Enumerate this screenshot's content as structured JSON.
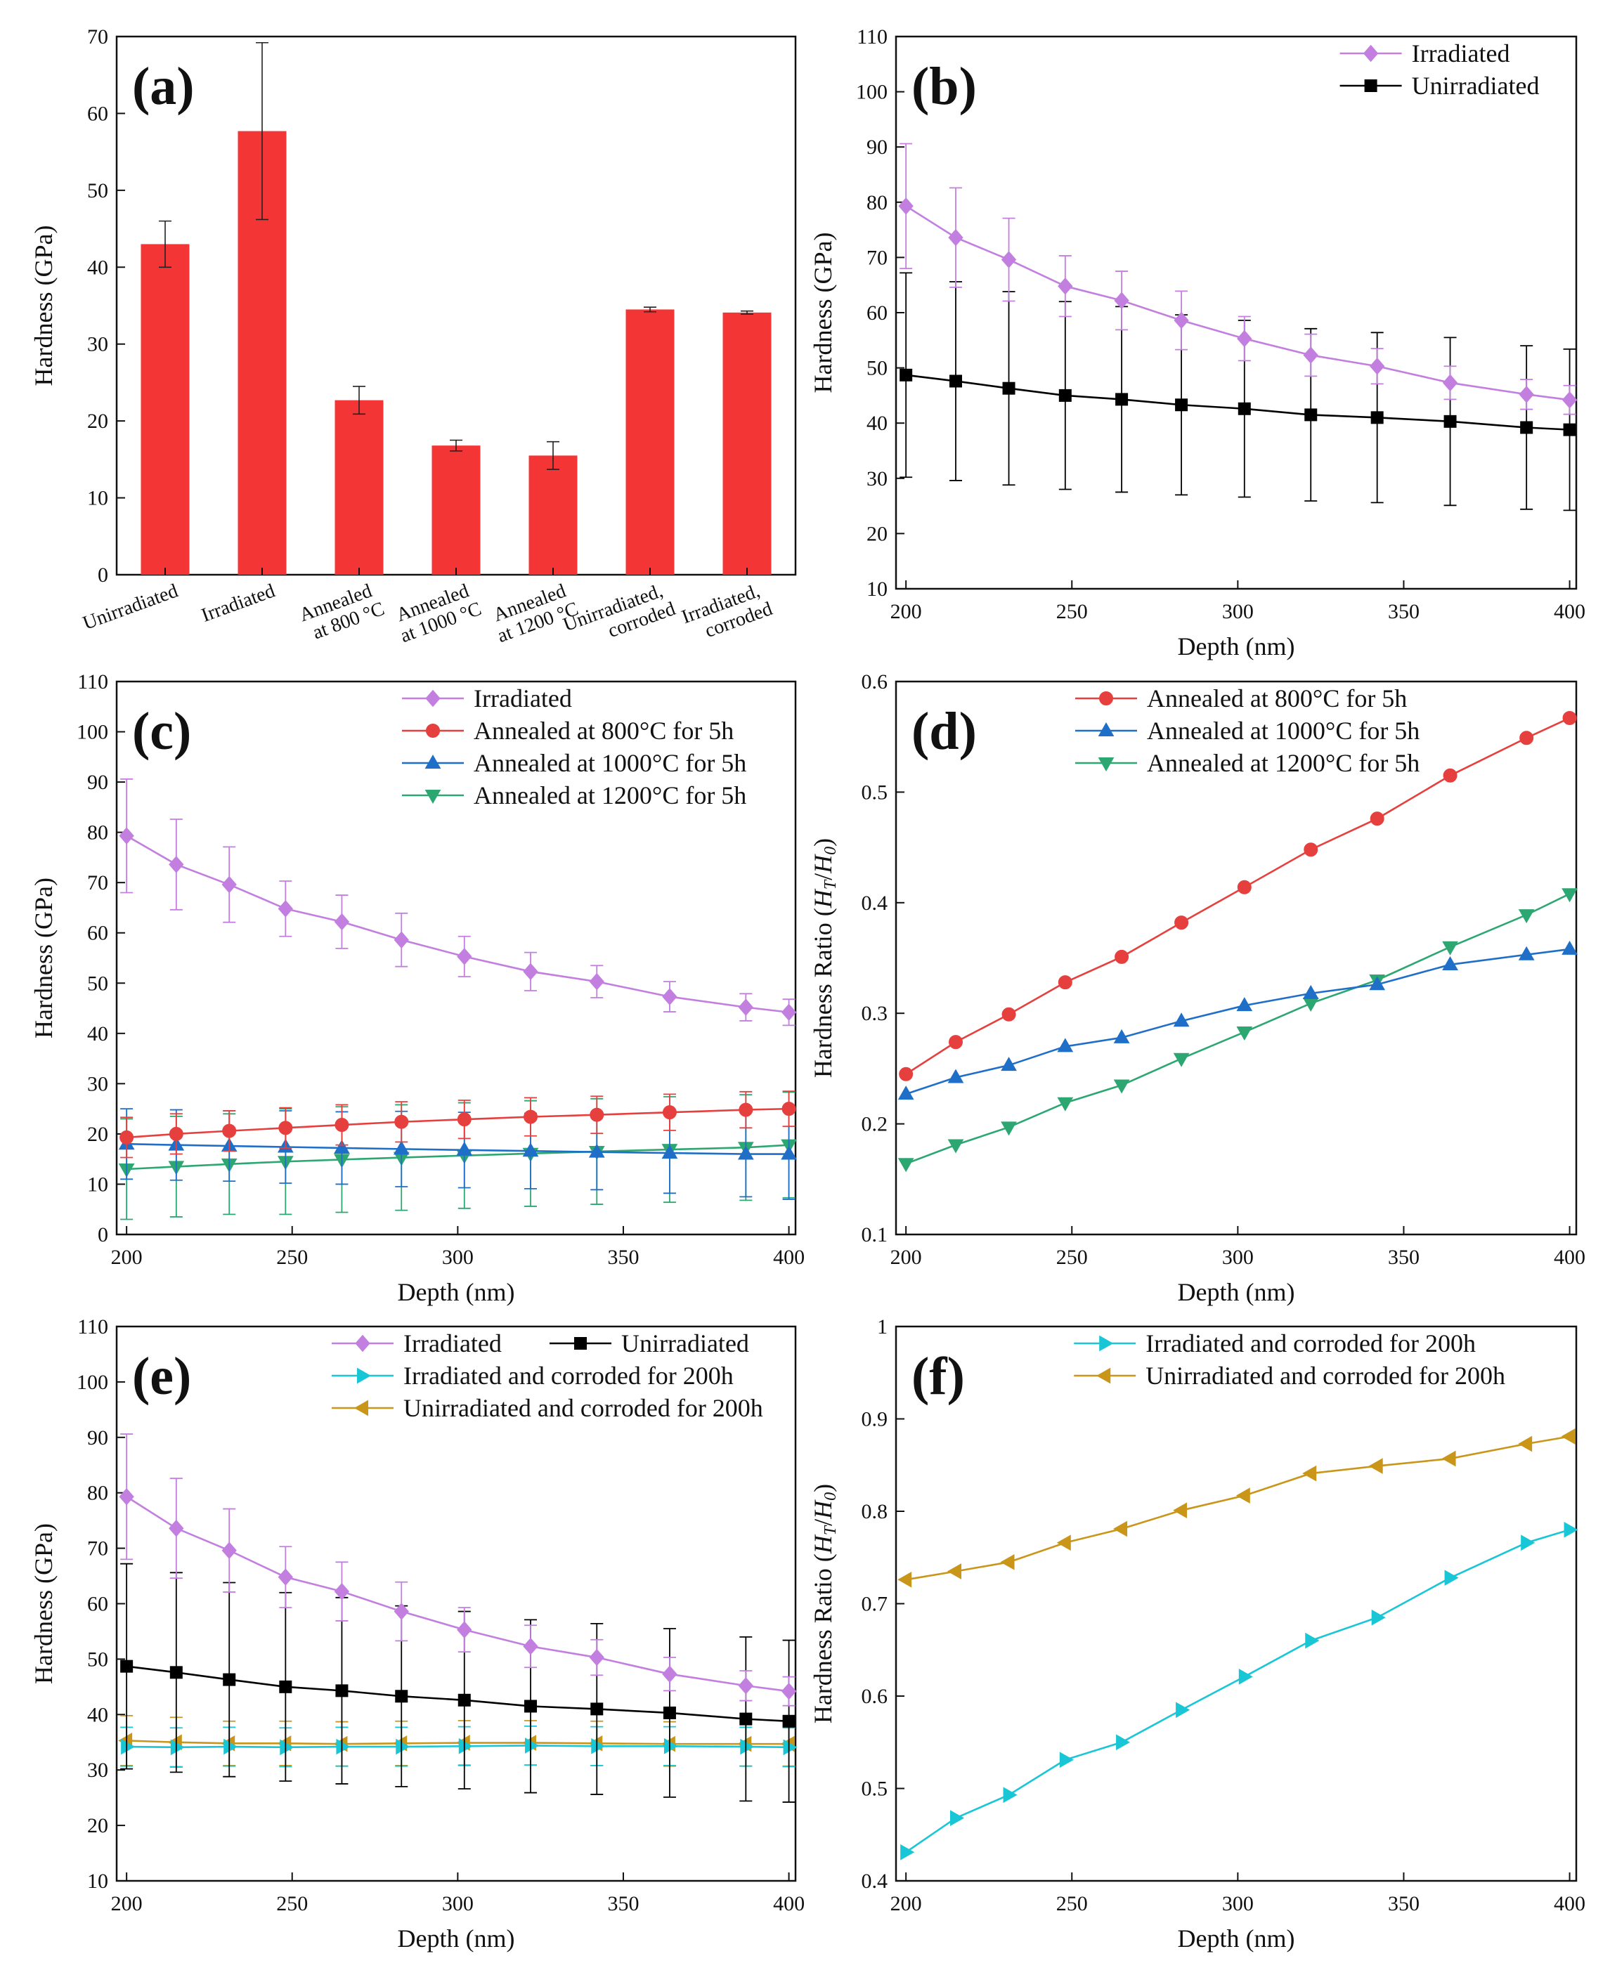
{
  "figure": {
    "panel_count": 6
  },
  "colors": {
    "irradiated": "#C27FE0",
    "unirradiated": "#000000",
    "a800": "#E6403E",
    "a1000": "#1F6FC9",
    "a1200": "#2DA772",
    "irr_corroded": "#18C6D6",
    "unirr_corroded": "#C9961A",
    "bar": "#F43535"
  },
  "chart_data": [
    {
      "panel": "(a)",
      "type": "bar",
      "title": "",
      "xlabel": "",
      "ylabel": "Hardness (GPa)",
      "ylim": [
        0,
        70
      ],
      "yticks": [
        0,
        10,
        20,
        30,
        40,
        50,
        60,
        70
      ],
      "categories": [
        [
          "Unirradiated"
        ],
        [
          "Irradiated"
        ],
        [
          "Annealed",
          "at 800 °C"
        ],
        [
          "Annealed",
          "at 1000 °C"
        ],
        [
          "Annealed",
          "at 1200 °C"
        ],
        [
          "Unirradiated,",
          "corroded"
        ],
        [
          "Irradiated,",
          "corroded"
        ]
      ],
      "values": [
        43.0,
        57.7,
        22.7,
        16.8,
        15.5,
        34.5,
        34.1
      ],
      "errors": [
        3.0,
        11.5,
        1.8,
        0.7,
        1.8,
        0.3,
        0.2
      ]
    },
    {
      "panel": "(b)",
      "type": "line",
      "xlabel": "Depth (nm)",
      "ylabel": "Hardness (GPa)",
      "xlim": [
        197,
        402
      ],
      "ylim": [
        10,
        110
      ],
      "xticks": [
        200,
        250,
        300,
        350,
        400
      ],
      "yticks": [
        10,
        20,
        30,
        40,
        50,
        60,
        70,
        80,
        90,
        100,
        110
      ],
      "legend_position": "top-right",
      "x": [
        200,
        215,
        231,
        248,
        265,
        283,
        302,
        322,
        342,
        364,
        387,
        400
      ],
      "series": [
        {
          "name": "Irradiated",
          "color_key": "irradiated",
          "marker": "diamond",
          "values": [
            79.3,
            73.6,
            69.6,
            64.8,
            62.2,
            58.6,
            55.3,
            52.3,
            50.3,
            47.3,
            45.2,
            44.2
          ],
          "errors": [
            11.3,
            9.0,
            7.5,
            5.5,
            5.3,
            5.3,
            4.0,
            3.8,
            3.2,
            3.0,
            2.7,
            2.6
          ]
        },
        {
          "name": "Unirradiated",
          "color_key": "unirradiated",
          "marker": "square",
          "values": [
            48.7,
            47.6,
            46.3,
            45.0,
            44.3,
            43.3,
            42.6,
            41.5,
            41.0,
            40.3,
            39.2,
            38.8
          ],
          "errors": [
            18.5,
            18.0,
            17.5,
            17.0,
            16.8,
            16.3,
            16.0,
            15.6,
            15.4,
            15.2,
            14.8,
            14.6
          ]
        }
      ]
    },
    {
      "panel": "(c)",
      "type": "line",
      "xlabel": "Depth (nm)",
      "ylabel": "Hardness (GPa)",
      "xlim": [
        197,
        402
      ],
      "ylim": [
        0,
        110
      ],
      "xticks": [
        200,
        250,
        300,
        350,
        400
      ],
      "yticks": [
        0,
        10,
        20,
        30,
        40,
        50,
        60,
        70,
        80,
        90,
        100,
        110
      ],
      "legend_position": "top-right",
      "x": [
        200,
        215,
        231,
        248,
        265,
        283,
        302,
        322,
        342,
        364,
        387,
        400
      ],
      "series": [
        {
          "name": "Irradiated",
          "color_key": "irradiated",
          "marker": "diamond",
          "values": [
            79.3,
            73.6,
            69.6,
            64.8,
            62.2,
            58.6,
            55.3,
            52.3,
            50.3,
            47.3,
            45.2,
            44.2
          ],
          "errors": [
            11.3,
            9.0,
            7.5,
            5.5,
            5.3,
            5.3,
            4.0,
            3.8,
            3.2,
            3.0,
            2.7,
            2.6
          ]
        },
        {
          "name": "Annealed at 800°C for 5h",
          "color_key": "a800",
          "marker": "circle",
          "values": [
            19.3,
            20.0,
            20.6,
            21.2,
            21.8,
            22.4,
            22.9,
            23.4,
            23.8,
            24.3,
            24.8,
            25.0
          ],
          "errors": [
            4.0,
            4.0,
            4.0,
            4.0,
            4.0,
            4.0,
            3.8,
            3.8,
            3.7,
            3.6,
            3.6,
            3.5
          ]
        },
        {
          "name": "Annealed at 1000°C for 5h",
          "color_key": "a1000",
          "marker": "triangle-up",
          "values": [
            18.0,
            17.8,
            17.6,
            17.4,
            17.2,
            17.0,
            16.8,
            16.6,
            16.4,
            16.2,
            16.0,
            16.0
          ],
          "errors": [
            7.0,
            7.0,
            7.0,
            7.2,
            7.2,
            7.5,
            7.5,
            7.5,
            7.5,
            8.0,
            8.5,
            9.0
          ]
        },
        {
          "name": "Annealed at 1200°C for 5h",
          "color_key": "a1200",
          "marker": "triangle-down",
          "values": [
            13.0,
            13.5,
            14.0,
            14.5,
            14.9,
            15.3,
            15.7,
            16.1,
            16.5,
            16.9,
            17.3,
            17.8
          ],
          "errors": [
            10.0,
            10.0,
            10.0,
            10.5,
            10.5,
            10.5,
            10.5,
            10.5,
            10.5,
            10.5,
            10.5,
            10.5
          ]
        }
      ]
    },
    {
      "panel": "(d)",
      "type": "line",
      "xlabel": "Depth (nm)",
      "ylabel_prefix": "Hardness Ratio (",
      "ylabel_h": "H",
      "ylabel_t": "T",
      "ylabel_slash": "/",
      "ylabel_0": "0",
      "ylabel_suffix": ")",
      "xlim": [
        197,
        402
      ],
      "ylim": [
        0.1,
        0.6
      ],
      "xticks": [
        200,
        250,
        300,
        350,
        400
      ],
      "yticks": [
        0.1,
        0.2,
        0.3,
        0.4,
        0.5,
        0.6
      ],
      "legend_position": "top-left",
      "x": [
        200,
        215,
        231,
        248,
        265,
        283,
        302,
        322,
        342,
        364,
        387,
        400
      ],
      "series": [
        {
          "name": "Annealed at 800°C for 5h",
          "color_key": "a800",
          "marker": "circle",
          "values": [
            0.245,
            0.274,
            0.299,
            0.328,
            0.351,
            0.382,
            0.414,
            0.448,
            0.476,
            0.515,
            0.549,
            0.567
          ]
        },
        {
          "name": "Annealed at 1000°C for 5h",
          "color_key": "a1000",
          "marker": "triangle-up",
          "values": [
            0.227,
            0.242,
            0.253,
            0.27,
            0.278,
            0.293,
            0.307,
            0.318,
            0.326,
            0.344,
            0.353,
            0.358
          ]
        },
        {
          "name": "Annealed at 1200°C for 5h",
          "color_key": "a1200",
          "marker": "triangle-down",
          "values": [
            0.164,
            0.181,
            0.197,
            0.219,
            0.235,
            0.259,
            0.283,
            0.309,
            0.33,
            0.36,
            0.389,
            0.408
          ]
        }
      ]
    },
    {
      "panel": "(e)",
      "type": "line",
      "xlabel": "Depth (nm)",
      "ylabel": "Hardness (GPa)",
      "xlim": [
        197,
        402
      ],
      "ylim": [
        10,
        110
      ],
      "xticks": [
        200,
        250,
        300,
        350,
        400
      ],
      "yticks": [
        10,
        20,
        30,
        40,
        50,
        60,
        70,
        80,
        90,
        100,
        110
      ],
      "legend_position": "top-right",
      "x": [
        200,
        215,
        231,
        248,
        265,
        283,
        302,
        322,
        342,
        364,
        387,
        400
      ],
      "series": [
        {
          "name": "Irradiated",
          "color_key": "irradiated",
          "marker": "diamond",
          "values": [
            79.3,
            73.6,
            69.6,
            64.8,
            62.2,
            58.6,
            55.3,
            52.3,
            50.3,
            47.3,
            45.2,
            44.2
          ],
          "errors": [
            11.3,
            9.0,
            7.5,
            5.5,
            5.3,
            5.3,
            4.0,
            3.8,
            3.2,
            3.0,
            2.7,
            2.6
          ]
        },
        {
          "name": "Unirradiated",
          "color_key": "unirradiated",
          "marker": "square",
          "values": [
            48.7,
            47.6,
            46.3,
            45.0,
            44.3,
            43.3,
            42.6,
            41.5,
            41.0,
            40.3,
            39.2,
            38.8
          ],
          "errors": [
            18.5,
            18.0,
            17.5,
            17.0,
            16.8,
            16.3,
            16.0,
            15.6,
            15.4,
            15.2,
            14.8,
            14.6
          ]
        },
        {
          "name": "Irradiated and corroded for 200h",
          "color_key": "irr_corroded",
          "marker": "triangle-right",
          "values": [
            34.2,
            34.1,
            34.2,
            34.1,
            34.2,
            34.2,
            34.3,
            34.4,
            34.3,
            34.3,
            34.2,
            34.1
          ],
          "errors": [
            3.5,
            3.5,
            3.5,
            3.5,
            3.5,
            3.5,
            3.5,
            3.5,
            3.5,
            3.5,
            3.5,
            3.5
          ]
        },
        {
          "name": "Unirradiated and corroded for 200h",
          "color_key": "unirr_corroded",
          "marker": "triangle-left",
          "values": [
            35.3,
            35.0,
            34.8,
            34.8,
            34.7,
            34.8,
            34.9,
            34.9,
            34.8,
            34.7,
            34.7,
            34.7
          ],
          "errors": [
            4.5,
            4.5,
            4.0,
            4.0,
            4.0,
            4.0,
            4.0,
            4.0,
            4.0,
            4.0,
            4.0,
            4.0
          ]
        }
      ]
    },
    {
      "panel": "(f)",
      "type": "line",
      "xlabel": "Depth (nm)",
      "ylabel_prefix": "Hardness Ratio (",
      "ylabel_h": "H",
      "ylabel_t": "T",
      "ylabel_slash": "/",
      "ylabel_0": "0",
      "ylabel_suffix": ")",
      "xlim": [
        197,
        402
      ],
      "ylim": [
        0.4,
        1.0
      ],
      "xticks": [
        200,
        250,
        300,
        350,
        400
      ],
      "yticks": [
        0.4,
        0.5,
        0.6,
        0.7,
        0.8,
        0.9,
        1.0
      ],
      "legend_position": "top-right",
      "x": [
        200,
        215,
        231,
        248,
        265,
        283,
        302,
        322,
        342,
        364,
        387,
        400
      ],
      "series": [
        {
          "name": "Irradiated and corroded for 200h",
          "color_key": "irr_corroded",
          "marker": "triangle-right",
          "values": [
            0.431,
            0.468,
            0.493,
            0.531,
            0.55,
            0.585,
            0.621,
            0.66,
            0.685,
            0.728,
            0.766,
            0.78
          ]
        },
        {
          "name": "Unirradiated and corroded for 200h",
          "color_key": "unirr_corroded",
          "marker": "triangle-left",
          "values": [
            0.726,
            0.735,
            0.745,
            0.766,
            0.781,
            0.801,
            0.817,
            0.841,
            0.849,
            0.857,
            0.873,
            0.881
          ]
        }
      ]
    }
  ]
}
